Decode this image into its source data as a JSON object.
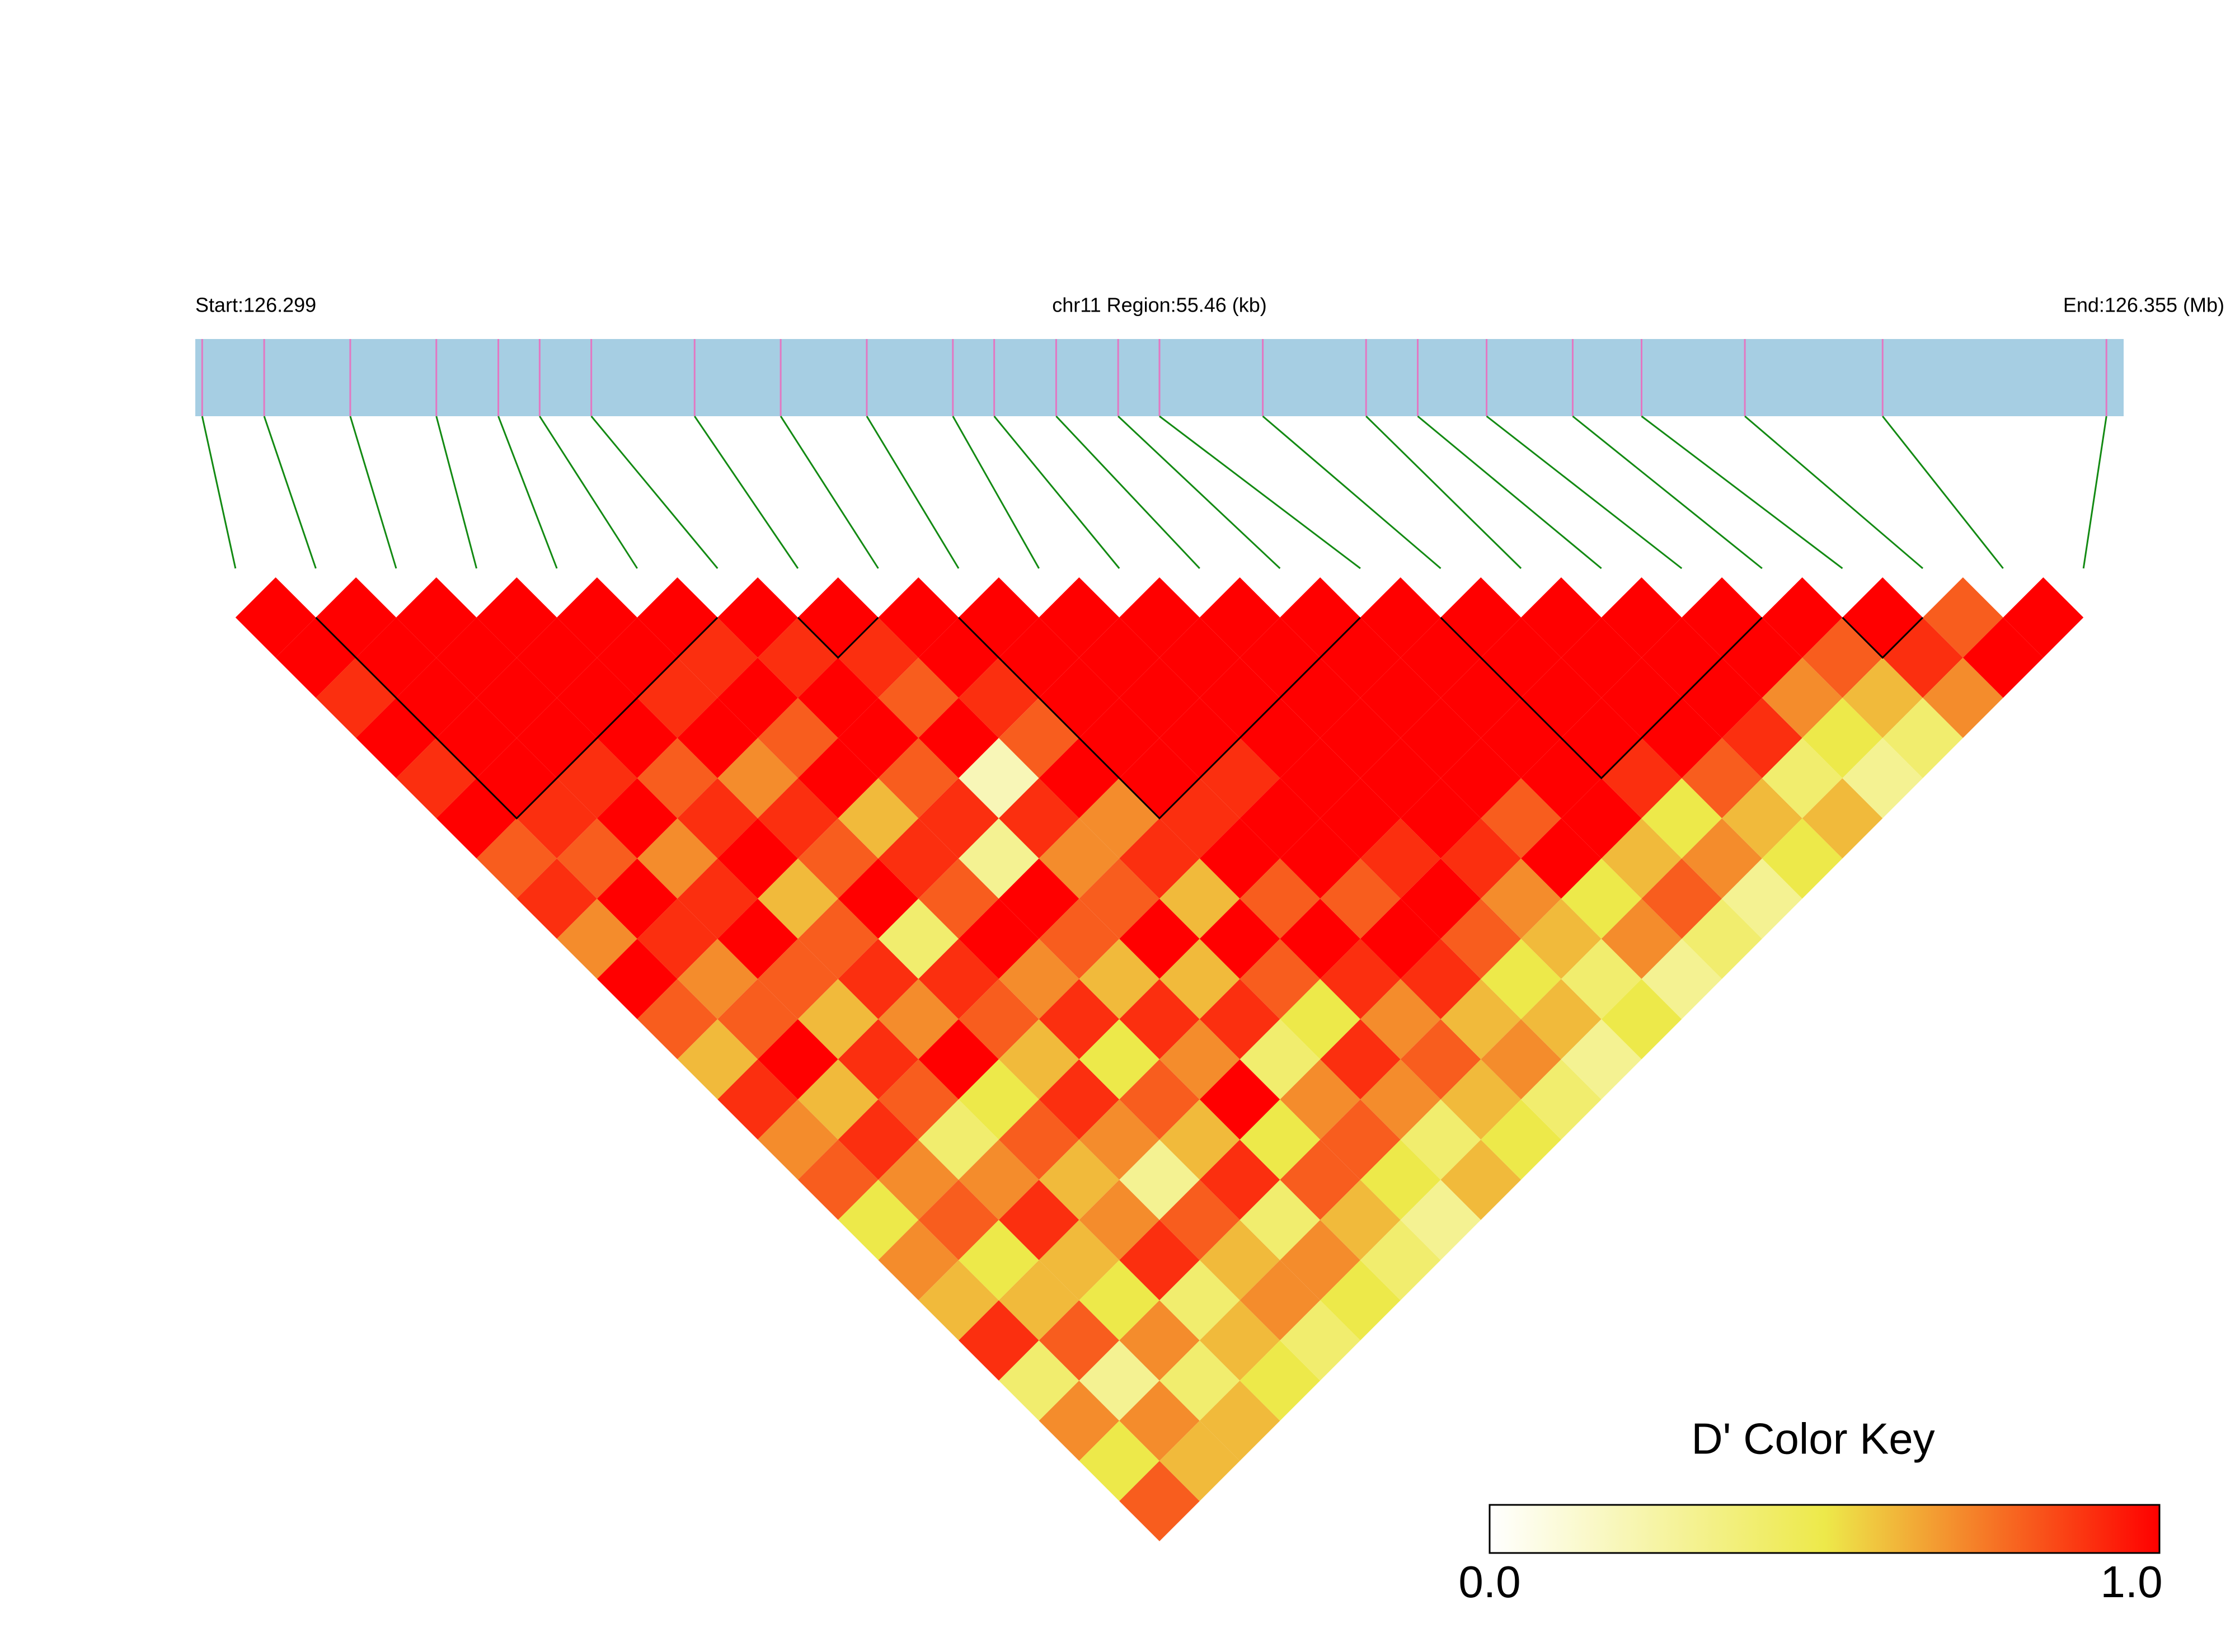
{
  "chart_data": {
    "type": "ld_heatmap",
    "title": "chr11 Region:55.46 (kb)",
    "start_label": "Start:126.299",
    "end_label": "End:126.355 (Mb)",
    "legend_title": "D' Color Key",
    "xlim": [
      126.299,
      126.355
    ],
    "snp_positions": [
      126.2992,
      126.301,
      126.3035,
      126.306,
      126.3078,
      126.309,
      126.3105,
      126.3135,
      126.316,
      126.3185,
      126.321,
      126.3222,
      126.324,
      126.3258,
      126.327,
      126.33,
      126.333,
      126.3345,
      126.3365,
      126.339,
      126.341,
      126.344,
      126.348,
      126.3545
    ],
    "dprime": [
      [
        1,
        1,
        0.9,
        1,
        0.9,
        1,
        0.8,
        0.9,
        0.7,
        1,
        0.8,
        0.6,
        0.9,
        0.7,
        0.8,
        0.5,
        0.7,
        0.6,
        0.9,
        0.4,
        0.7,
        0.5,
        0.8
      ],
      [
        1,
        1,
        1,
        1,
        1,
        0.9,
        0.8,
        1,
        0.9,
        0.7,
        0.8,
        1,
        0.6,
        0.9,
        0.7,
        0.8,
        0.5,
        0.6,
        0.8,
        0.3,
        0.7,
        0.6
      ],
      [
        1,
        1,
        1,
        1,
        0.9,
        1,
        0.7,
        0.9,
        1,
        0.8,
        0.6,
        0.9,
        0.8,
        0.4,
        0.7,
        0.9,
        0.6,
        0.5,
        0.7,
        0.4,
        0.6
      ],
      [
        1,
        1,
        1,
        1,
        0.8,
        0.9,
        1,
        0.6,
        0.8,
        0.9,
        0.7,
        1,
        0.5,
        0.8,
        0.6,
        0.7,
        0.9,
        0.4,
        0.6,
        0.5
      ],
      [
        1,
        1,
        0.9,
        1,
        0.7,
        0.9,
        0.8,
        1,
        0.4,
        0.9,
        0.8,
        0.6,
        0.9,
        0.7,
        0.3,
        0.8,
        0.6,
        0.7,
        0.4
      ],
      [
        1,
        0.9,
        1,
        0.8,
        1,
        0.6,
        0.9,
        0.8,
        1,
        0.7,
        0.9,
        0.5,
        0.8,
        0.6,
        0.9,
        0.4,
        0.7,
        0.5
      ],
      [
        1,
        0.9,
        1,
        1,
        0.8,
        0.9,
        0.3,
        1,
        0.8,
        0.6,
        0.9,
        0.7,
        1,
        0.5,
        0.8,
        0.6,
        0.4
      ],
      [
        1,
        0.9,
        0.8,
        1,
        0.2,
        0.9,
        0.7,
        0.8,
        1,
        0.6,
        0.9,
        0.4,
        0.7,
        0.8,
        0.5,
        0.3
      ],
      [
        1,
        1,
        0.9,
        0.8,
        1,
        0.7,
        0.9,
        0.6,
        1,
        0.8,
        0.5,
        0.9,
        0.7,
        0.4,
        0.6
      ],
      [
        1,
        1,
        1,
        1,
        1,
        0.9,
        1,
        0.8,
        1,
        0.9,
        0.7,
        0.8,
        0.6,
        0.5
      ],
      [
        1,
        1,
        1,
        1,
        0.9,
        1,
        1,
        0.8,
        1,
        0.9,
        0.6,
        0.7,
        0.4
      ],
      [
        1,
        1,
        1,
        1,
        1,
        1,
        0.9,
        1,
        0.8,
        0.5,
        0.6,
        0.3
      ],
      [
        1,
        1,
        1,
        1,
        1,
        1,
        0.9,
        0.7,
        0.6,
        0.4,
        0.5
      ],
      [
        1,
        1,
        1,
        1,
        1,
        0.8,
        1,
        0.5,
        0.7,
        0.3
      ],
      [
        1,
        1,
        1,
        1,
        1,
        1,
        0.6,
        0.8,
        0.4
      ],
      [
        1,
        1,
        1,
        1,
        0.9,
        0.5,
        0.7,
        0.3
      ],
      [
        1,
        1,
        1,
        1,
        0.8,
        0.6,
        0.5
      ],
      [
        1,
        1,
        1,
        0.9,
        0.4,
        0.6
      ],
      [
        1,
        1,
        0.7,
        0.5,
        0.3
      ],
      [
        1,
        0.8,
        0.6,
        0.4
      ],
      [
        1,
        0.9,
        0.7
      ],
      [
        0.8,
        1
      ],
      [
        1
      ]
    ],
    "blocks": [
      [
        1,
        6
      ],
      [
        7,
        8
      ],
      [
        9,
        14
      ],
      [
        15,
        19
      ],
      [
        20,
        21
      ]
    ],
    "colorlim": [
      0,
      1
    ],
    "color_stops": [
      0,
      0.5,
      1
    ],
    "colors": [
      "#ffffff",
      "#ede94a",
      "#ff0000"
    ],
    "colorticks": [
      {
        "value": 0,
        "label": "0.0"
      },
      {
        "value": 1,
        "label": "1.0"
      }
    ],
    "bar_color": "#a6cee3",
    "marker_color": "#e377c2",
    "connector_color": "#138a13"
  }
}
